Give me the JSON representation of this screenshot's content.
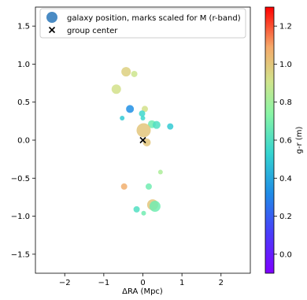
{
  "chart_data": {
    "type": "scatter",
    "xlabel": "ΔRA (Mpc)",
    "ylabel": "",
    "xlim": [
      -2.75,
      2.75
    ],
    "ylim": [
      -1.75,
      1.75
    ],
    "x_ticks": [
      -2,
      -1,
      0,
      1,
      2
    ],
    "y_ticks": [
      -1.5,
      -1.0,
      -0.5,
      0.0,
      0.5,
      1.0,
      1.5
    ],
    "x_tick_labels": [
      "−2",
      "−1",
      "0",
      "1",
      "2"
    ],
    "y_tick_labels": [
      "−1.5",
      "−1.0",
      "−0.5",
      "0.0",
      "0.5",
      "1.0",
      "1.5"
    ],
    "grid": false,
    "legend": {
      "location": "top-left",
      "entries": [
        {
          "marker": "circle",
          "color": "#4a8bc4",
          "label": "galaxy position, marks scaled for M (r-band)"
        },
        {
          "marker": "x",
          "color": "#000000",
          "label": "group center"
        }
      ]
    },
    "colorbar": {
      "label": "g-r (m)",
      "min": -0.1,
      "max": 1.3,
      "ticks": [
        0.0,
        0.2,
        0.4,
        0.6,
        0.8,
        1.0,
        1.2
      ],
      "tick_labels": [
        "0.0",
        "0.2",
        "0.4",
        "0.6",
        "0.8",
        "1.0",
        "1.2"
      ],
      "colormap": "rainbow"
    },
    "group_center": {
      "x": 0.0,
      "y": 0.0
    },
    "points": [
      {
        "x": -0.43,
        "y": 0.9,
        "color_value": 0.97,
        "size": 6
      },
      {
        "x": -0.22,
        "y": 0.87,
        "color_value": 0.9,
        "size": 4
      },
      {
        "x": -0.68,
        "y": 0.67,
        "color_value": 0.92,
        "size": 6
      },
      {
        "x": -0.33,
        "y": 0.41,
        "color_value": 0.33,
        "size": 5
      },
      {
        "x": 0.05,
        "y": 0.41,
        "color_value": 0.92,
        "size": 4
      },
      {
        "x": -0.02,
        "y": 0.35,
        "color_value": 0.55,
        "size": 4
      },
      {
        "x": -0.53,
        "y": 0.29,
        "color_value": 0.5,
        "size": 3
      },
      {
        "x": 0.0,
        "y": 0.29,
        "color_value": 0.55,
        "size": 3
      },
      {
        "x": 0.23,
        "y": 0.21,
        "color_value": 0.68,
        "size": 5
      },
      {
        "x": 0.35,
        "y": 0.2,
        "color_value": 0.6,
        "size": 5
      },
      {
        "x": 0.7,
        "y": 0.18,
        "color_value": 0.5,
        "size": 4
      },
      {
        "x": 0.02,
        "y": 0.13,
        "color_value": 1.0,
        "size": 9
      },
      {
        "x": 0.1,
        "y": -0.03,
        "color_value": 1.0,
        "size": 5
      },
      {
        "x": 0.45,
        "y": -0.42,
        "color_value": 0.82,
        "size": 3
      },
      {
        "x": -0.48,
        "y": -0.61,
        "color_value": 1.07,
        "size": 4
      },
      {
        "x": 0.15,
        "y": -0.61,
        "color_value": 0.68,
        "size": 4
      },
      {
        "x": 0.25,
        "y": -0.85,
        "color_value": 1.0,
        "size": 7
      },
      {
        "x": 0.31,
        "y": -0.87,
        "color_value": 0.68,
        "size": 7
      },
      {
        "x": -0.16,
        "y": -0.91,
        "color_value": 0.6,
        "size": 4
      },
      {
        "x": 0.02,
        "y": -0.96,
        "color_value": 0.68,
        "size": 3
      }
    ]
  }
}
